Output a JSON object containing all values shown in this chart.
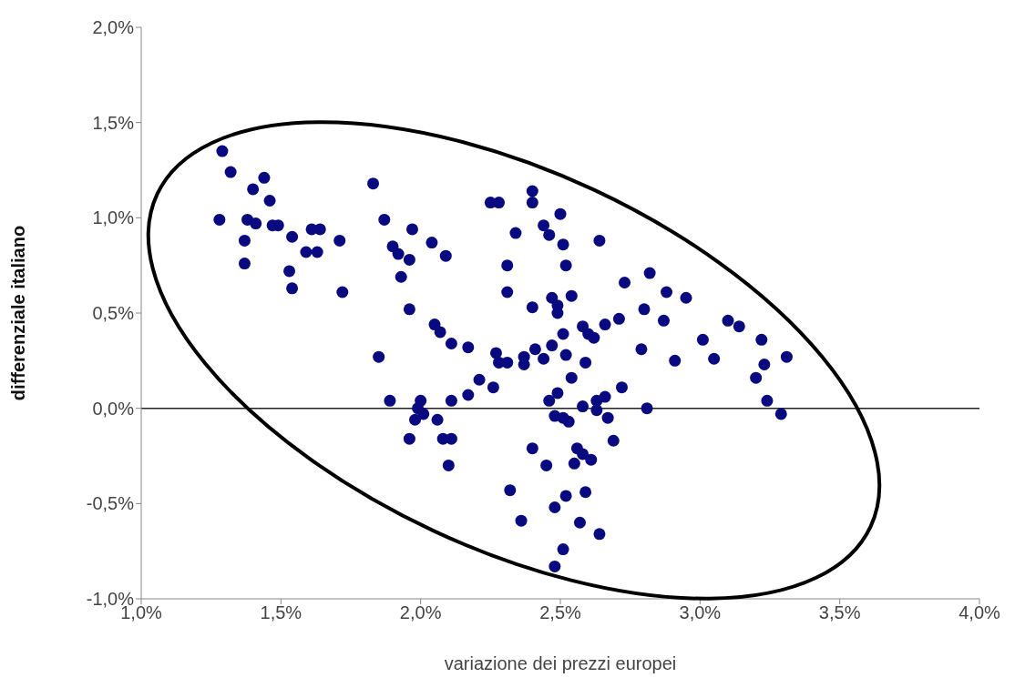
{
  "chart_data": {
    "type": "scatter",
    "xlabel": "variazione dei prezzi europei",
    "ylabel": "differenziale italiano",
    "xlim": [
      1.0,
      4.0
    ],
    "xticks": [
      {
        "value": 1.0,
        "label": "1,0%"
      },
      {
        "value": 1.5,
        "label": "1,5%"
      },
      {
        "value": 2.0,
        "label": "2,0%"
      },
      {
        "value": 2.5,
        "label": "2,5%"
      },
      {
        "value": 3.0,
        "label": "3,0%"
      },
      {
        "value": 3.5,
        "label": "3,5%"
      },
      {
        "value": 4.0,
        "label": "4,0%"
      }
    ],
    "ylim": [
      -1.0,
      2.0
    ],
    "yticks": [
      {
        "value": -1.0,
        "label": "-1,0%"
      },
      {
        "value": -0.5,
        "label": "-0,5%"
      },
      {
        "value": 0.0,
        "label": "0,0%"
      },
      {
        "value": 0.5,
        "label": "0,5%"
      },
      {
        "value": 1.0,
        "label": "1,0%"
      },
      {
        "value": 1.5,
        "label": "1,5%"
      },
      {
        "value": 2.0,
        "label": "2,0%"
      }
    ],
    "grid": false,
    "marker": "circle",
    "ref_lines": [
      {
        "axis": "y",
        "value": 0
      }
    ],
    "series": [
      {
        "color": "#0a0a80",
        "x": [
          1.29,
          1.32,
          1.44,
          1.4,
          1.46,
          1.28,
          1.38,
          1.41,
          1.47,
          1.49,
          1.37,
          1.54,
          1.61,
          1.64,
          1.71,
          1.59,
          1.63,
          1.37,
          1.53,
          1.54,
          1.72,
          1.83,
          1.87,
          1.97,
          1.9,
          1.92,
          1.96,
          2.04,
          2.09,
          1.93,
          1.96,
          2.05,
          2.07,
          2.11,
          1.85,
          1.89,
          2.0,
          1.99,
          2.01,
          1.98,
          2.06,
          2.08,
          1.96,
          2.11,
          2.1,
          2.11,
          2.25,
          2.28,
          2.4,
          2.4,
          2.5,
          2.44,
          2.46,
          2.34,
          2.51,
          2.64,
          2.31,
          2.52,
          2.31,
          2.4,
          2.47,
          2.49,
          2.54,
          2.49,
          2.73,
          2.82,
          2.8,
          2.88,
          2.87,
          2.95,
          2.66,
          2.71,
          2.58,
          2.6,
          2.62,
          2.51,
          2.47,
          2.41,
          2.37,
          2.44,
          2.27,
          2.28,
          2.31,
          2.17,
          2.37,
          2.52,
          2.59,
          2.54,
          2.21,
          2.26,
          2.17,
          2.72,
          2.79,
          2.91,
          3.01,
          3.05,
          3.1,
          3.14,
          3.22,
          3.23,
          3.2,
          3.31,
          3.24,
          3.29,
          2.81,
          2.46,
          2.49,
          2.48,
          2.51,
          2.53,
          2.58,
          2.63,
          2.66,
          2.63,
          2.67,
          2.69,
          2.4,
          2.45,
          2.56,
          2.58,
          2.61,
          2.55,
          2.59,
          2.32,
          2.52,
          2.48,
          2.36,
          2.57,
          2.64,
          2.51,
          2.48
        ],
        "values": [
          1.35,
          1.24,
          1.21,
          1.15,
          1.09,
          0.99,
          0.99,
          0.97,
          0.96,
          0.96,
          0.88,
          0.9,
          0.94,
          0.94,
          0.88,
          0.82,
          0.82,
          0.76,
          0.72,
          0.63,
          0.61,
          1.18,
          0.99,
          0.94,
          0.85,
          0.81,
          0.78,
          0.87,
          0.8,
          0.69,
          0.52,
          0.44,
          0.4,
          0.34,
          0.27,
          0.04,
          0.04,
          0.0,
          -0.03,
          -0.06,
          -0.06,
          -0.16,
          -0.16,
          -0.16,
          -0.3,
          0.04,
          1.08,
          1.08,
          1.14,
          1.08,
          1.02,
          0.96,
          0.91,
          0.92,
          0.86,
          0.88,
          0.75,
          0.75,
          0.61,
          0.53,
          0.58,
          0.54,
          0.59,
          0.5,
          0.66,
          0.71,
          0.52,
          0.61,
          0.46,
          0.58,
          0.44,
          0.47,
          0.43,
          0.39,
          0.37,
          0.39,
          0.33,
          0.31,
          0.27,
          0.26,
          0.29,
          0.24,
          0.24,
          0.32,
          0.23,
          0.28,
          0.24,
          0.16,
          0.15,
          0.11,
          0.07,
          0.11,
          0.31,
          0.25,
          0.36,
          0.26,
          0.46,
          0.43,
          0.36,
          0.23,
          0.16,
          0.27,
          0.04,
          -0.03,
          0.0,
          0.04,
          0.08,
          -0.04,
          -0.05,
          -0.07,
          0.01,
          0.04,
          0.06,
          -0.01,
          -0.05,
          -0.17,
          -0.21,
          -0.3,
          -0.21,
          -0.24,
          -0.27,
          -0.29,
          -0.44,
          -0.43,
          -0.46,
          -0.52,
          -0.59,
          -0.6,
          -0.66,
          -0.74,
          -0.83
        ]
      }
    ]
  }
}
